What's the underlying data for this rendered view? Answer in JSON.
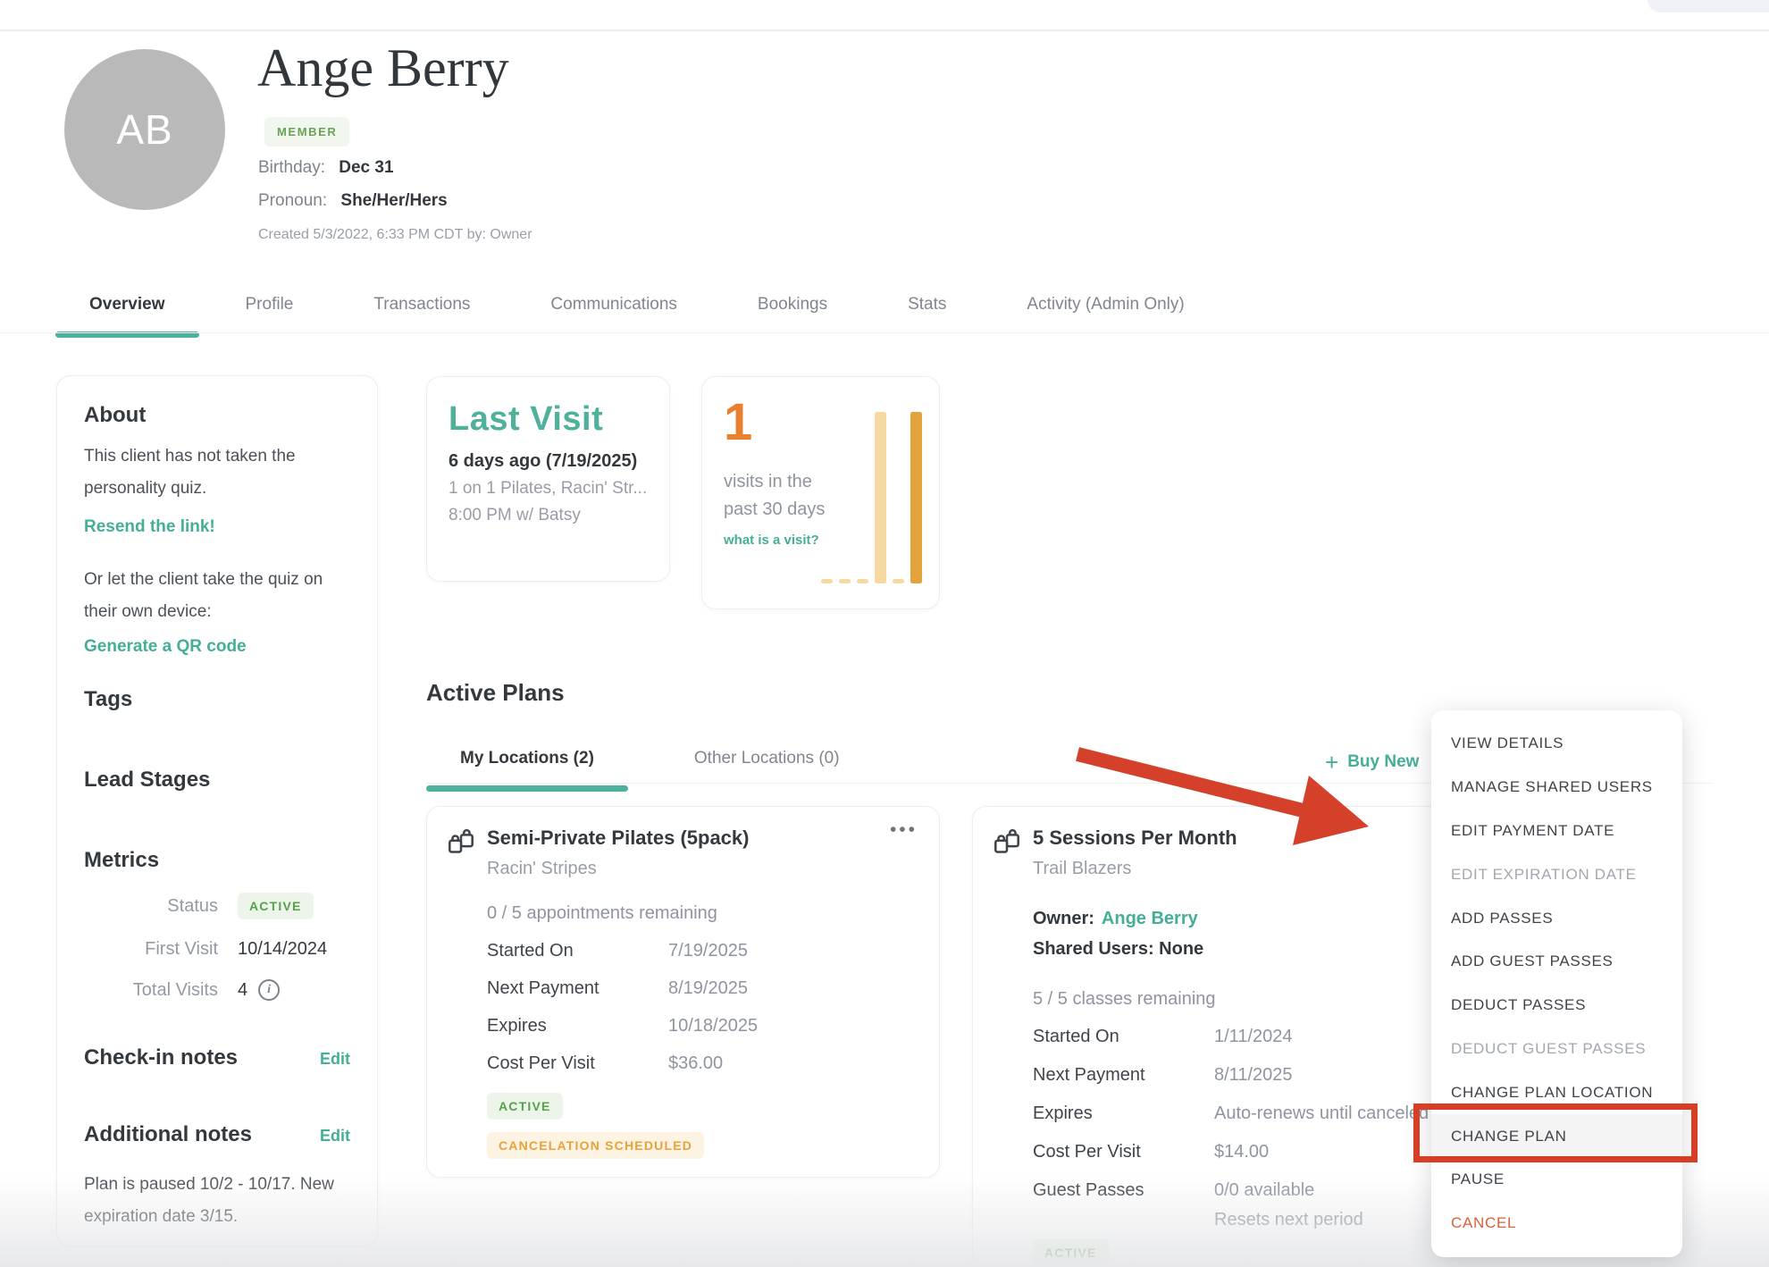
{
  "header": {
    "avatar_initials": "AB",
    "name": "Ange Berry",
    "member_badge": "MEMBER",
    "birthday_label": "Birthday:",
    "birthday_value": "Dec 31",
    "pronoun_label": "Pronoun:",
    "pronoun_value": "She/Her/Hers",
    "created_line": "Created 5/3/2022, 6:33 PM CDT by: Owner"
  },
  "tabs": [
    {
      "label": "Overview"
    },
    {
      "label": "Profile"
    },
    {
      "label": "Transactions"
    },
    {
      "label": "Communications"
    },
    {
      "label": "Bookings"
    },
    {
      "label": "Stats"
    },
    {
      "label": "Activity (Admin Only)"
    }
  ],
  "sidebar": {
    "about_title": "About",
    "about_text": "This client has not taken the personality quiz.",
    "resend_link": "Resend the link!",
    "quiz_text": "Or let the client take the quiz on their own device:",
    "qr_link": "Generate a QR code",
    "tags_title": "Tags",
    "lead_stages_title": "Lead Stages",
    "metrics_title": "Metrics",
    "status_label": "Status",
    "status_value": "ACTIVE",
    "first_visit_label": "First Visit",
    "first_visit_value": "10/14/2024",
    "total_visits_label": "Total Visits",
    "total_visits_value": "4",
    "checkin_title": "Check-in notes",
    "checkin_edit": "Edit",
    "additional_title": "Additional notes",
    "additional_edit": "Edit",
    "additional_note": "Plan is paused 10/2 - 10/17. New expiration date 3/15."
  },
  "last_visit_card": {
    "title": "Last Visit",
    "when": "6 days ago (7/19/2025)",
    "what": "1 on 1 Pilates, Racin' Str...",
    "time": "8:00 PM w/ Batsy"
  },
  "visits_card": {
    "count": "1",
    "caption": "visits in the past 30 days",
    "link": "what is a visit?",
    "chart": {
      "type": "bar",
      "bars": [
        {
          "h": 5,
          "tone": "light"
        },
        {
          "h": 5,
          "tone": "light"
        },
        {
          "h": 5,
          "tone": "light"
        },
        {
          "h": 192,
          "tone": "light"
        },
        {
          "h": 5,
          "tone": "light"
        },
        {
          "h": 192,
          "tone": "dark"
        }
      ],
      "colors": {
        "light": "#f6d9a0",
        "dark": "#e2a23c"
      }
    }
  },
  "active_plans": {
    "title": "Active Plans",
    "tab_my": "My Locations (2)",
    "tab_other": "Other Locations (0)",
    "buy_new": "Buy New"
  },
  "plan1": {
    "title": "Semi-Private Pilates (5pack)",
    "subtitle": "Racin' Stripes",
    "remaining": "0 / 5 appointments remaining",
    "rows": [
      {
        "label": "Started On",
        "value": "7/19/2025"
      },
      {
        "label": "Next Payment",
        "value": "8/19/2025"
      },
      {
        "label": "Expires",
        "value": "10/18/2025"
      },
      {
        "label": "Cost Per Visit",
        "value": "$36.00"
      }
    ],
    "badge_active": "ACTIVE",
    "badge_cancel": "CANCELATION SCHEDULED"
  },
  "plan2": {
    "title": "5 Sessions Per Month",
    "subtitle": "Trail Blazers",
    "owner_label": "Owner:",
    "owner_value": "Ange Berry",
    "shared_text": "Shared Users: None",
    "remaining": "5 / 5 classes remaining",
    "rows": [
      {
        "label": "Started On",
        "value": "1/11/2024"
      },
      {
        "label": "Next Payment",
        "value": "8/11/2025"
      },
      {
        "label": "Expires",
        "value": "Auto-renews until canceled"
      },
      {
        "label": "Cost Per Visit",
        "value": "$14.00"
      },
      {
        "label": "Guest Passes",
        "value": "0/0 available"
      }
    ],
    "guest_note": "Resets next period",
    "badge_active": "ACTIVE"
  },
  "menu": {
    "items": [
      {
        "label": "VIEW DETAILS"
      },
      {
        "label": "MANAGE SHARED USERS"
      },
      {
        "label": "EDIT PAYMENT DATE"
      },
      {
        "label": "EDIT EXPIRATION DATE",
        "state": "disabled"
      },
      {
        "label": "ADD PASSES"
      },
      {
        "label": "ADD GUEST PASSES"
      },
      {
        "label": "DEDUCT PASSES"
      },
      {
        "label": "DEDUCT GUEST PASSES",
        "state": "disabled"
      },
      {
        "label": "CHANGE PLAN LOCATION"
      },
      {
        "label": "CHANGE PLAN",
        "state": "highlighted"
      },
      {
        "label": "PAUSE"
      },
      {
        "label": "CANCEL",
        "state": "danger"
      }
    ]
  },
  "icons": {
    "dots": "•••",
    "plus": "+",
    "info": "i"
  },
  "colors": {
    "teal": "#45ae97",
    "green_text": "#56a24a",
    "green_bg": "#edf5ea",
    "orange_count": "#e8802f",
    "amber_text": "#e7a23a",
    "amber_bg": "#fdf3e2",
    "annotation_red": "#d63e26",
    "cancel_red": "#d85f3a"
  }
}
